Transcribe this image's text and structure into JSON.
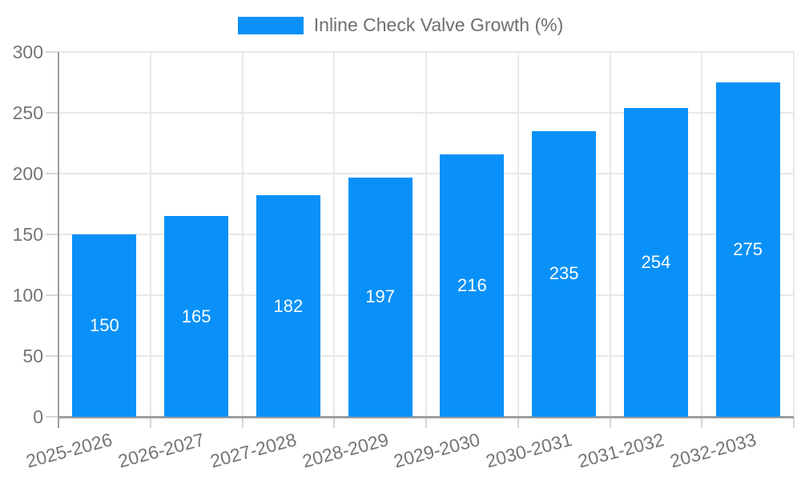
{
  "chart_data": {
    "type": "bar",
    "title": "",
    "legend_label": "Inline Check Valve Growth (%)",
    "legend_position": "top",
    "categories": [
      "2025-2026",
      "2026-2027",
      "2027-2028",
      "2028-2029",
      "2029-2030",
      "2030-2031",
      "2031-2032",
      "2032-2033"
    ],
    "values": [
      150,
      165,
      182,
      197,
      216,
      235,
      254,
      275
    ],
    "value_labels_shown": true,
    "xlabel": "",
    "ylabel": "",
    "ylim": [
      0,
      300
    ],
    "yticks": [
      0,
      50,
      100,
      150,
      200,
      250,
      300
    ],
    "grid": "on",
    "colors": {
      "bar": "#0991f9",
      "bar_value_text": "#ffffff",
      "axis": "#9e9e9e",
      "gridline": "#e8e8e8",
      "tick": "#d6d6d6",
      "tick_text": "#757575",
      "legend_text": "#6e6e6e"
    }
  }
}
